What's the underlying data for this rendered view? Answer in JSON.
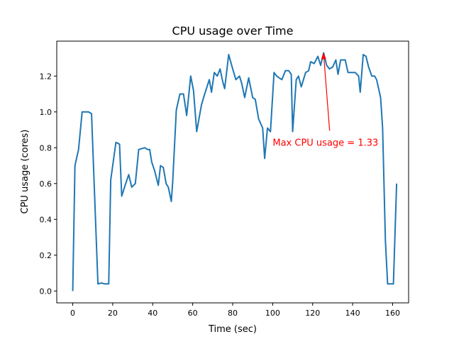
{
  "chart_data": {
    "type": "line",
    "title": "CPU usage over Time",
    "xlabel": "Time (sec)",
    "ylabel": "CPU usage (cores)",
    "xlim": [
      -8,
      168
    ],
    "ylim": [
      -0.066,
      1.395
    ],
    "xticks": [
      0,
      20,
      40,
      60,
      80,
      100,
      120,
      140,
      160
    ],
    "yticks": [
      0.0,
      0.2,
      0.4,
      0.6,
      0.8,
      1.0,
      1.2
    ],
    "ytick_labels": [
      "0.0",
      "0.2",
      "0.4",
      "0.6",
      "0.8",
      "1.0",
      "1.2"
    ],
    "grid": false,
    "series_color": "#1f77b4",
    "series": [
      {
        "x": [
          0,
          1.1,
          2.9,
          4.7,
          6.5,
          7.9,
          9.4,
          12.6,
          14.4,
          15.8,
          18,
          19,
          21.6,
          23.4,
          24.5,
          26.2,
          28,
          29.5,
          31.3,
          33,
          36,
          37.4,
          38.5,
          39.5,
          41,
          42.8,
          43.9,
          45.3,
          46.7,
          47.8,
          49.3,
          50,
          51.8,
          53.6,
          55.4,
          57,
          59,
          60.4,
          62,
          64.4,
          66,
          68.3,
          69.4,
          70.8,
          72.3,
          73.7,
          75,
          76,
          78,
          80,
          81.6,
          83.4,
          84.5,
          86,
          88,
          90,
          91.3,
          93,
          95,
          96,
          97.4,
          98.9,
          100.7,
          102,
          104.6,
          106.4,
          108,
          109.3,
          110,
          111.8,
          112.9,
          114.3,
          116.5,
          118,
          119,
          120.8,
          122.6,
          124,
          125.5,
          127,
          128.4,
          130,
          131.6,
          132.7,
          134,
          136.3,
          137.7,
          139.5,
          141.3,
          143,
          143.8,
          145.3,
          146.7,
          148,
          149.6,
          151,
          152,
          154,
          155,
          156.4,
          157.5,
          160.4,
          162
        ],
        "y": [
          0,
          0.7,
          0.79,
          1.0,
          1.0,
          1.0,
          0.99,
          0.04,
          0.045,
          0.04,
          0.04,
          0.62,
          0.83,
          0.82,
          0.53,
          0.59,
          0.65,
          0.58,
          0.6,
          0.79,
          0.8,
          0.79,
          0.79,
          0.72,
          0.67,
          0.59,
          0.7,
          0.69,
          0.6,
          0.58,
          0.5,
          0.61,
          1.01,
          1.1,
          1.1,
          0.98,
          1.2,
          1.12,
          0.89,
          1.04,
          1.1,
          1.18,
          1.11,
          1.22,
          1.2,
          1.24,
          1.17,
          1.13,
          1.32,
          1.24,
          1.18,
          1.2,
          1.16,
          1.08,
          1.19,
          1.08,
          1.07,
          0.96,
          0.91,
          0.74,
          0.91,
          0.89,
          1.22,
          1.2,
          1.18,
          1.23,
          1.23,
          1.21,
          0.89,
          1.18,
          1.2,
          1.14,
          1.22,
          1.23,
          1.28,
          1.27,
          1.31,
          1.26,
          1.33,
          1.26,
          1.24,
          1.25,
          1.29,
          1.21,
          1.29,
          1.29,
          1.22,
          1.22,
          1.22,
          1.2,
          1.11,
          1.32,
          1.31,
          1.25,
          1.2,
          1.2,
          1.18,
          1.08,
          0.91,
          0.28,
          0.04,
          0.04,
          0.6
        ]
      }
    ],
    "annotation": {
      "text": "Max CPU usage = 1.33",
      "color": "#ff0000",
      "point": [
        125.5,
        1.33
      ],
      "text_pos": [
        100,
        0.83
      ],
      "arrow_tail": [
        128.5,
        0.895
      ]
    }
  }
}
